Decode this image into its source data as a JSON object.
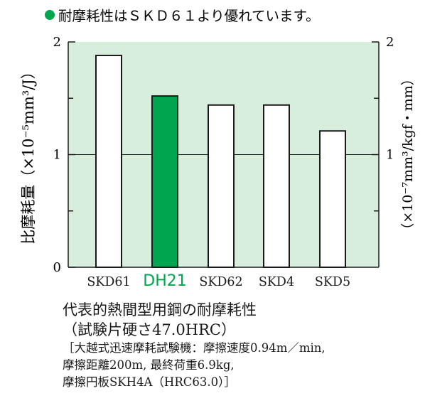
{
  "header": {
    "bullet_color": "#00a550",
    "text": "耐摩耗性はＳＫＤ６１より優れています。"
  },
  "chart_data": {
    "type": "bar",
    "categories": [
      "SKD61",
      "DH21",
      "SKD62",
      "SKD4",
      "SKD5"
    ],
    "values": [
      1.88,
      1.52,
      1.44,
      1.44,
      1.21
    ],
    "highlight_category": "DH21",
    "ylim": [
      0,
      2
    ],
    "yticks_labeled": [
      "0",
      "1",
      "2"
    ],
    "yticks_right_labeled": [
      "1",
      "2"
    ],
    "ylabel": "比摩耗量（×10⁻⁵mm³/J）",
    "ylabel_right": "（×10⁻⁷mm³/kgf・mm）",
    "grid": "y at 1",
    "colors": {
      "plot_background": "#d8eedd",
      "bar_fill": "#ffffff",
      "highlight_fill": "#00a550",
      "highlight_label": "#00a550",
      "axis": "#1a1a1a"
    }
  },
  "caption": {
    "title": "代表的熱間型用鋼の耐摩耗性",
    "subtitle": "（試験片硬さ47.0HRC）",
    "note_line1": "［大越式迅速摩耗試験機：摩擦速度0.94m／min,",
    "note_line2": "摩擦距離200m,  最終荷重6.9kg,",
    "note_line3": "摩擦円板SKH4A（HRC63.0）］"
  }
}
